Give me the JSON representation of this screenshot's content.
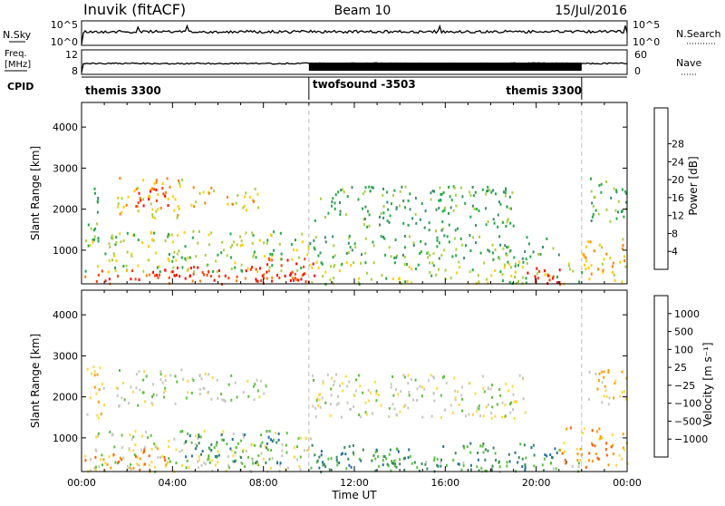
{
  "header": {
    "station": "Inuvik (fitACF)",
    "beam": "Beam 10",
    "date": "15/Jul/2016"
  },
  "strips": {
    "nsky": {
      "label": "N.Sky",
      "ticks": [
        "10^5",
        "10^0"
      ],
      "right_label": "N.Search",
      "right_ticks": [
        "10^5",
        "10^0"
      ]
    },
    "freq": {
      "label_lines": [
        "Freq.",
        "[MHz]"
      ],
      "ticks": [
        "12",
        "8"
      ],
      "right_label": "Nave",
      "right_ticks": [
        "60",
        "0"
      ]
    },
    "cpid": {
      "label": "CPID",
      "segments": [
        {
          "name": "themis 3300",
          "start_hr": 0,
          "end_hr": 10
        },
        {
          "name": "twofsound -3503",
          "start_hr": 10,
          "end_hr": 22
        },
        {
          "name": "themis 3300",
          "start_hr": 22,
          "end_hr": 24
        }
      ]
    }
  },
  "chart_data": [
    {
      "type": "heatmap",
      "title": "",
      "xlabel": "Time UT",
      "ylabel": "Slant Range [km]",
      "xlim_hr": [
        0,
        24
      ],
      "ylim": [
        180,
        4600
      ],
      "xticks": [
        "00:00",
        "04:00",
        "08:00",
        "12:00",
        "16:00",
        "20:00",
        "00:00"
      ],
      "yticks": [
        1000,
        2000,
        3000,
        4000
      ],
      "colorbar": {
        "label": "Power [dB]",
        "ticks": [
          "4",
          "8",
          "12",
          "16",
          "20",
          "24",
          "28"
        ],
        "colors": [
          "#0000ff",
          "#2050c8",
          "#3a8c6a",
          "#22aa44",
          "#a8d040",
          "#ffcc00",
          "#ff8000",
          "#ff3c00",
          "#ff0000"
        ]
      },
      "regions": [
        {
          "t0": 0.1,
          "t1": 10.1,
          "r0": 200,
          "r1": 550,
          "level": 7
        },
        {
          "t0": 3.0,
          "t1": 5.2,
          "r0": 250,
          "r1": 650,
          "level": 8
        },
        {
          "t0": 7.4,
          "t1": 10.3,
          "r0": 250,
          "r1": 850,
          "level": 8
        },
        {
          "t0": 0.1,
          "t1": 10.0,
          "r0": 500,
          "r1": 1500,
          "level": 4
        },
        {
          "t0": 0.2,
          "t1": 0.7,
          "r0": 1500,
          "r1": 2800,
          "level": 3
        },
        {
          "t0": 1.5,
          "t1": 4.6,
          "r0": 1800,
          "r1": 2800,
          "level": 5
        },
        {
          "t0": 2.3,
          "t1": 3.8,
          "r0": 2000,
          "r1": 2550,
          "level": 8
        },
        {
          "t0": 4.8,
          "t1": 5.9,
          "r0": 2050,
          "r1": 2650,
          "level": 5
        },
        {
          "t0": 6.2,
          "t1": 7.9,
          "r0": 2000,
          "r1": 2600,
          "level": 5
        },
        {
          "t0": 10.0,
          "t1": 22.0,
          "r0": 200,
          "r1": 750,
          "level": 4
        },
        {
          "t0": 10.2,
          "t1": 19.0,
          "r0": 1500,
          "r1": 2600,
          "level": 3
        },
        {
          "t0": 10.0,
          "t1": 21.0,
          "r0": 800,
          "r1": 1400,
          "level": 3
        },
        {
          "t0": 19.5,
          "t1": 22.0,
          "r0": 200,
          "r1": 600,
          "level": 8
        },
        {
          "t0": 22.0,
          "t1": 24.0,
          "r0": 200,
          "r1": 1300,
          "level": 5
        },
        {
          "t0": 22.2,
          "t1": 24.0,
          "r0": 1700,
          "r1": 2800,
          "level": 3
        }
      ]
    },
    {
      "type": "heatmap",
      "title": "",
      "xlabel": "Time UT",
      "ylabel": "Slant Range [km]",
      "xlim_hr": [
        0,
        24
      ],
      "ylim": [
        180,
        4600
      ],
      "xticks": [
        "00:00",
        "04:00",
        "08:00",
        "12:00",
        "16:00",
        "20:00",
        "00:00"
      ],
      "yticks": [
        1000,
        2000,
        3000,
        4000
      ],
      "colorbar": {
        "label": "Velocity [m s⁻¹]",
        "ticks": [
          "1000",
          "500",
          "100",
          "25",
          "−25",
          "−100",
          "−500",
          "−1000"
        ],
        "colors": [
          "#0030c8",
          "#2470a0",
          "#3a8a5a",
          "#5cc040",
          "#c8c8c0",
          "#ffd840",
          "#ff9c00",
          "#ff5c00",
          "#ff0000"
        ]
      },
      "regions": [
        {
          "t0": 0.1,
          "t1": 10.1,
          "r0": 200,
          "r1": 1200,
          "level": 4
        },
        {
          "t0": 0.1,
          "t1": 3.8,
          "r0": 200,
          "r1": 800,
          "level": 6
        },
        {
          "t0": 4.5,
          "t1": 9.0,
          "r0": 400,
          "r1": 1200,
          "level": 2
        },
        {
          "t0": 1.5,
          "t1": 4.5,
          "r0": 1800,
          "r1": 2700,
          "level": 4
        },
        {
          "t0": 4.5,
          "t1": 8.2,
          "r0": 1900,
          "r1": 2600,
          "level": 4
        },
        {
          "t0": 0.2,
          "t1": 1.0,
          "r0": 1500,
          "r1": 2900,
          "level": 5
        },
        {
          "t0": 10.1,
          "t1": 19.5,
          "r0": 1500,
          "r1": 2600,
          "level": 4
        },
        {
          "t0": 10.1,
          "t1": 21.0,
          "r0": 200,
          "r1": 900,
          "level": 2
        },
        {
          "t0": 13.0,
          "t1": 22.0,
          "r0": 200,
          "r1": 500,
          "level": 3
        },
        {
          "t0": 21.0,
          "t1": 24.0,
          "r0": 300,
          "r1": 1300,
          "level": 6
        },
        {
          "t0": 22.1,
          "t1": 24.0,
          "r0": 1800,
          "r1": 2700,
          "level": 5
        }
      ]
    }
  ]
}
